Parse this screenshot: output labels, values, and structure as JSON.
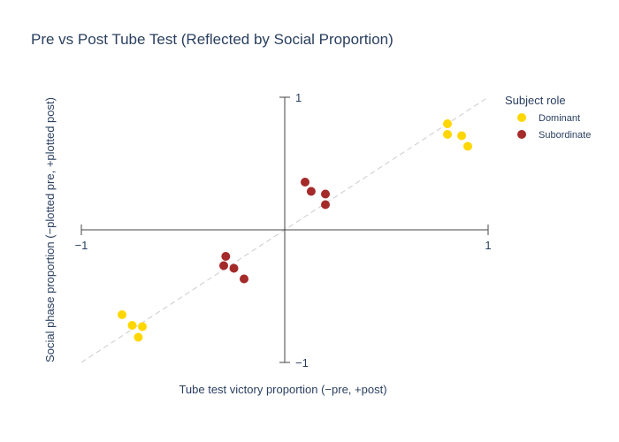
{
  "chart_data": {
    "type": "scatter",
    "title": "Pre vs Post Tube Test (Reflected by Social Proportion)",
    "xlabel": "Tube test victory proportion (−pre, +post)",
    "ylabel": "Social phase proportion (−plotted pre, +plotted post)",
    "xlim": [
      -1,
      1
    ],
    "ylim": [
      -1,
      1
    ],
    "x_ticks": [
      {
        "value": -1,
        "label": "−1"
      },
      {
        "value": 1,
        "label": "1"
      }
    ],
    "y_ticks": [
      {
        "value": 1,
        "label": "1"
      },
      {
        "value": -1,
        "label": "−1"
      }
    ],
    "diagonal_reference": true,
    "legend": {
      "title": "Subject role",
      "position": "top-right",
      "entries": [
        {
          "name": "Dominant",
          "color": "#FFD700"
        },
        {
          "name": "Subordinate",
          "color": "#A52A2A"
        }
      ]
    },
    "series": [
      {
        "name": "Dominant",
        "color": "#FFD700",
        "points": [
          {
            "x": 0.8,
            "y": 0.8
          },
          {
            "x": 0.8,
            "y": 0.72
          },
          {
            "x": 0.87,
            "y": 0.71
          },
          {
            "x": 0.9,
            "y": 0.63
          },
          {
            "x": -0.8,
            "y": -0.64
          },
          {
            "x": -0.75,
            "y": -0.72
          },
          {
            "x": -0.7,
            "y": -0.73
          },
          {
            "x": -0.72,
            "y": -0.81
          }
        ]
      },
      {
        "name": "Subordinate",
        "color": "#A52A2A",
        "points": [
          {
            "x": 0.1,
            "y": 0.36
          },
          {
            "x": 0.13,
            "y": 0.29
          },
          {
            "x": 0.2,
            "y": 0.27
          },
          {
            "x": 0.2,
            "y": 0.19
          },
          {
            "x": -0.29,
            "y": -0.2
          },
          {
            "x": -0.3,
            "y": -0.27
          },
          {
            "x": -0.25,
            "y": -0.29
          },
          {
            "x": -0.2,
            "y": -0.37
          }
        ]
      }
    ]
  }
}
